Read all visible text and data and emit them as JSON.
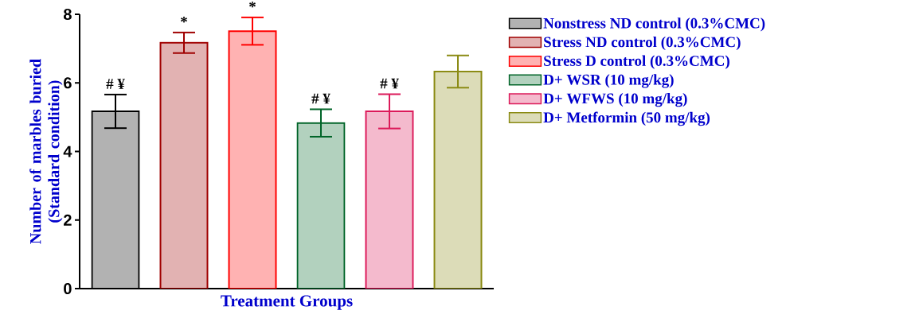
{
  "chart_data": {
    "type": "bar",
    "xlabel": "Treatment Groups",
    "ylabel": "Number of marbles buried (Standard condition)",
    "categories": [
      null
    ],
    "series": [
      {
        "name": "Nonstress ND control (0.3%CMC)",
        "color": "#000000",
        "values": [
          5.17
        ],
        "errors": [
          0.49
        ],
        "value_labels": [
          "# ¥"
        ]
      },
      {
        "name": "Stress ND control (0.3%CMC)",
        "color": "#a00000",
        "values": [
          7.17
        ],
        "errors": [
          0.3
        ],
        "value_labels": [
          "*"
        ]
      },
      {
        "name": "Stress D control (0.3%CMC)",
        "color": "#ff0000",
        "values": [
          7.51
        ],
        "errors": [
          0.4
        ],
        "value_labels": [
          "*"
        ]
      },
      {
        "name": "D+ WSR (10 mg/kg)",
        "color": "#006428",
        "values": [
          4.83
        ],
        "errors": [
          0.4
        ],
        "value_labels": [
          "# ¥"
        ]
      },
      {
        "name": "D+ WFWS (10 mg/kg)",
        "color": "#dc1a5a",
        "values": [
          5.17
        ],
        "errors": [
          0.5
        ],
        "value_labels": [
          "# ¥"
        ]
      },
      {
        "name": "D+ Metformin (50 mg/kg)",
        "color": "#8b8b14",
        "values": [
          6.33
        ],
        "errors": [
          0.47
        ],
        "value_labels": [
          null
        ]
      }
    ],
    "ylim": [
      0,
      8
    ],
    "yticks": [
      0,
      2,
      4,
      6,
      8
    ],
    "grid": false,
    "legend": "right"
  }
}
